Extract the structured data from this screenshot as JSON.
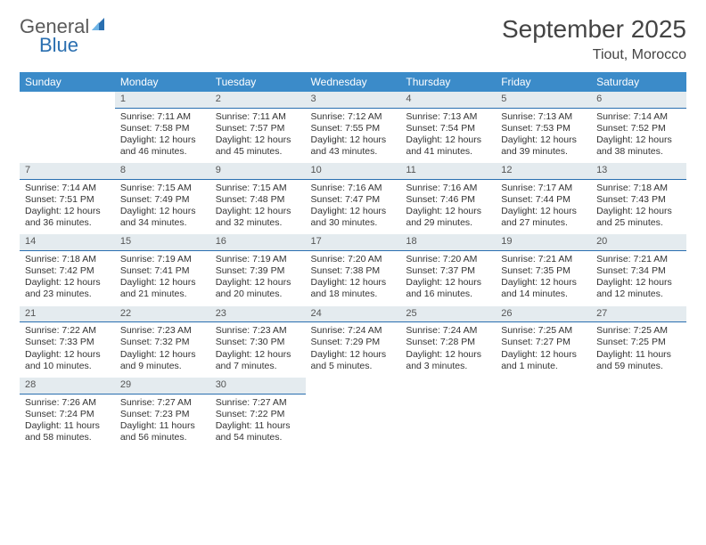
{
  "logo": {
    "word1": "General",
    "word2": "Blue"
  },
  "title": "September 2025",
  "location": "Tiout, Morocco",
  "colors": {
    "header_bg": "#3b8bc9",
    "header_text": "#ffffff",
    "daynum_bg": "#e4ebef",
    "daynum_border": "#2a6fb0",
    "body_text": "#333333",
    "title_text": "#444444",
    "logo_gray": "#5a5a5a",
    "logo_blue": "#2a6fb0",
    "page_bg": "#ffffff"
  },
  "fonts": {
    "title_size_pt": 21,
    "location_size_pt": 12,
    "dayhead_size_pt": 9,
    "cell_size_pt": 8,
    "logo_size_pt": 16
  },
  "day_headers": [
    "Sunday",
    "Monday",
    "Tuesday",
    "Wednesday",
    "Thursday",
    "Friday",
    "Saturday"
  ],
  "weeks": [
    [
      {
        "blank": true
      },
      {
        "n": "1",
        "sunrise": "Sunrise: 7:11 AM",
        "sunset": "Sunset: 7:58 PM",
        "daylight": "Daylight: 12 hours and 46 minutes."
      },
      {
        "n": "2",
        "sunrise": "Sunrise: 7:11 AM",
        "sunset": "Sunset: 7:57 PM",
        "daylight": "Daylight: 12 hours and 45 minutes."
      },
      {
        "n": "3",
        "sunrise": "Sunrise: 7:12 AM",
        "sunset": "Sunset: 7:55 PM",
        "daylight": "Daylight: 12 hours and 43 minutes."
      },
      {
        "n": "4",
        "sunrise": "Sunrise: 7:13 AM",
        "sunset": "Sunset: 7:54 PM",
        "daylight": "Daylight: 12 hours and 41 minutes."
      },
      {
        "n": "5",
        "sunrise": "Sunrise: 7:13 AM",
        "sunset": "Sunset: 7:53 PM",
        "daylight": "Daylight: 12 hours and 39 minutes."
      },
      {
        "n": "6",
        "sunrise": "Sunrise: 7:14 AM",
        "sunset": "Sunset: 7:52 PM",
        "daylight": "Daylight: 12 hours and 38 minutes."
      }
    ],
    [
      {
        "n": "7",
        "sunrise": "Sunrise: 7:14 AM",
        "sunset": "Sunset: 7:51 PM",
        "daylight": "Daylight: 12 hours and 36 minutes."
      },
      {
        "n": "8",
        "sunrise": "Sunrise: 7:15 AM",
        "sunset": "Sunset: 7:49 PM",
        "daylight": "Daylight: 12 hours and 34 minutes."
      },
      {
        "n": "9",
        "sunrise": "Sunrise: 7:15 AM",
        "sunset": "Sunset: 7:48 PM",
        "daylight": "Daylight: 12 hours and 32 minutes."
      },
      {
        "n": "10",
        "sunrise": "Sunrise: 7:16 AM",
        "sunset": "Sunset: 7:47 PM",
        "daylight": "Daylight: 12 hours and 30 minutes."
      },
      {
        "n": "11",
        "sunrise": "Sunrise: 7:16 AM",
        "sunset": "Sunset: 7:46 PM",
        "daylight": "Daylight: 12 hours and 29 minutes."
      },
      {
        "n": "12",
        "sunrise": "Sunrise: 7:17 AM",
        "sunset": "Sunset: 7:44 PM",
        "daylight": "Daylight: 12 hours and 27 minutes."
      },
      {
        "n": "13",
        "sunrise": "Sunrise: 7:18 AM",
        "sunset": "Sunset: 7:43 PM",
        "daylight": "Daylight: 12 hours and 25 minutes."
      }
    ],
    [
      {
        "n": "14",
        "sunrise": "Sunrise: 7:18 AM",
        "sunset": "Sunset: 7:42 PM",
        "daylight": "Daylight: 12 hours and 23 minutes."
      },
      {
        "n": "15",
        "sunrise": "Sunrise: 7:19 AM",
        "sunset": "Sunset: 7:41 PM",
        "daylight": "Daylight: 12 hours and 21 minutes."
      },
      {
        "n": "16",
        "sunrise": "Sunrise: 7:19 AM",
        "sunset": "Sunset: 7:39 PM",
        "daylight": "Daylight: 12 hours and 20 minutes."
      },
      {
        "n": "17",
        "sunrise": "Sunrise: 7:20 AM",
        "sunset": "Sunset: 7:38 PM",
        "daylight": "Daylight: 12 hours and 18 minutes."
      },
      {
        "n": "18",
        "sunrise": "Sunrise: 7:20 AM",
        "sunset": "Sunset: 7:37 PM",
        "daylight": "Daylight: 12 hours and 16 minutes."
      },
      {
        "n": "19",
        "sunrise": "Sunrise: 7:21 AM",
        "sunset": "Sunset: 7:35 PM",
        "daylight": "Daylight: 12 hours and 14 minutes."
      },
      {
        "n": "20",
        "sunrise": "Sunrise: 7:21 AM",
        "sunset": "Sunset: 7:34 PM",
        "daylight": "Daylight: 12 hours and 12 minutes."
      }
    ],
    [
      {
        "n": "21",
        "sunrise": "Sunrise: 7:22 AM",
        "sunset": "Sunset: 7:33 PM",
        "daylight": "Daylight: 12 hours and 10 minutes."
      },
      {
        "n": "22",
        "sunrise": "Sunrise: 7:23 AM",
        "sunset": "Sunset: 7:32 PM",
        "daylight": "Daylight: 12 hours and 9 minutes."
      },
      {
        "n": "23",
        "sunrise": "Sunrise: 7:23 AM",
        "sunset": "Sunset: 7:30 PM",
        "daylight": "Daylight: 12 hours and 7 minutes."
      },
      {
        "n": "24",
        "sunrise": "Sunrise: 7:24 AM",
        "sunset": "Sunset: 7:29 PM",
        "daylight": "Daylight: 12 hours and 5 minutes."
      },
      {
        "n": "25",
        "sunrise": "Sunrise: 7:24 AM",
        "sunset": "Sunset: 7:28 PM",
        "daylight": "Daylight: 12 hours and 3 minutes."
      },
      {
        "n": "26",
        "sunrise": "Sunrise: 7:25 AM",
        "sunset": "Sunset: 7:27 PM",
        "daylight": "Daylight: 12 hours and 1 minute."
      },
      {
        "n": "27",
        "sunrise": "Sunrise: 7:25 AM",
        "sunset": "Sunset: 7:25 PM",
        "daylight": "Daylight: 11 hours and 59 minutes."
      }
    ],
    [
      {
        "n": "28",
        "sunrise": "Sunrise: 7:26 AM",
        "sunset": "Sunset: 7:24 PM",
        "daylight": "Daylight: 11 hours and 58 minutes."
      },
      {
        "n": "29",
        "sunrise": "Sunrise: 7:27 AM",
        "sunset": "Sunset: 7:23 PM",
        "daylight": "Daylight: 11 hours and 56 minutes."
      },
      {
        "n": "30",
        "sunrise": "Sunrise: 7:27 AM",
        "sunset": "Sunset: 7:22 PM",
        "daylight": "Daylight: 11 hours and 54 minutes."
      },
      {
        "blank": true
      },
      {
        "blank": true
      },
      {
        "blank": true
      },
      {
        "blank": true
      }
    ]
  ]
}
